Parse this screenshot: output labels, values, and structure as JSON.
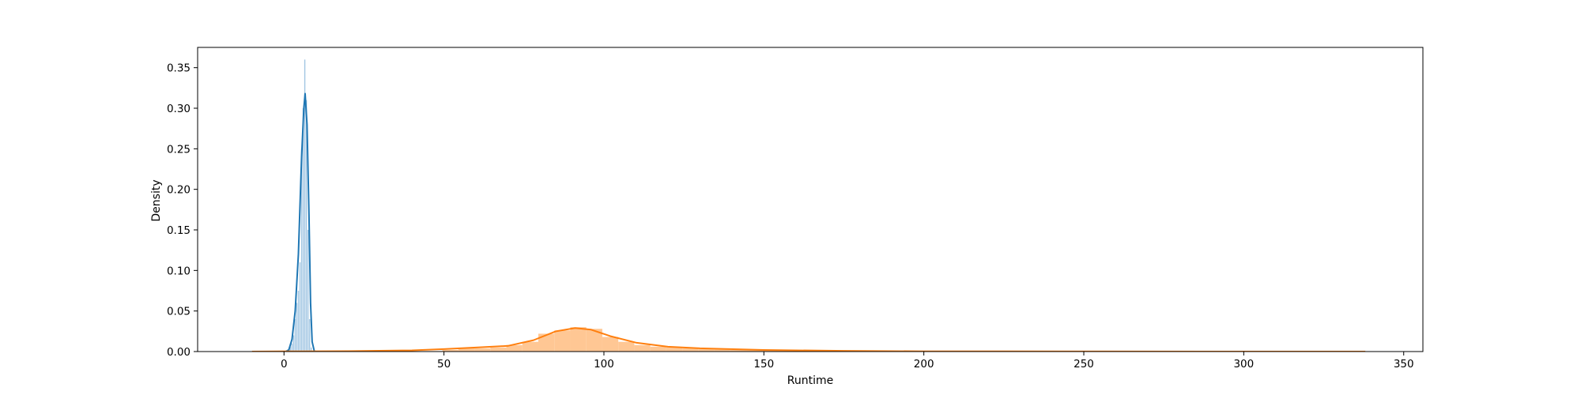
{
  "chart_data": {
    "type": "area",
    "xlabel": "Runtime",
    "ylabel": "Density",
    "xlim": [
      -27,
      356
    ],
    "ylim": [
      0,
      0.375
    ],
    "xticks": [
      0,
      50,
      100,
      150,
      200,
      250,
      300,
      350
    ],
    "xtick_labels": [
      "0",
      "50",
      "100",
      "150",
      "200",
      "250",
      "300",
      "350"
    ],
    "yticks": [
      0.0,
      0.05,
      0.1,
      0.15,
      0.2,
      0.25,
      0.3,
      0.35
    ],
    "ytick_labels": [
      "0.00",
      "0.05",
      "0.10",
      "0.15",
      "0.20",
      "0.25",
      "0.30",
      "0.35"
    ],
    "grid": false,
    "series": [
      {
        "color": "#1f77b4",
        "fill": "#9ec4e1",
        "hist_bin_width": 0.35,
        "hist": [
          [
            1.5,
            0.002
          ],
          [
            2.0,
            0.006
          ],
          [
            2.5,
            0.01
          ],
          [
            3.0,
            0.02
          ],
          [
            3.5,
            0.04
          ],
          [
            4.0,
            0.06
          ],
          [
            4.5,
            0.075
          ],
          [
            5.0,
            0.11
          ],
          [
            5.5,
            0.25
          ],
          [
            6.0,
            0.3
          ],
          [
            6.5,
            0.36
          ],
          [
            7.0,
            0.31
          ],
          [
            7.5,
            0.15
          ],
          [
            8.0,
            0.04
          ],
          [
            8.5,
            0.005
          ]
        ],
        "kde": [
          [
            0.5,
            0.0
          ],
          [
            1.5,
            0.002
          ],
          [
            2.5,
            0.015
          ],
          [
            3.5,
            0.05
          ],
          [
            4.5,
            0.12
          ],
          [
            5.5,
            0.24
          ],
          [
            6.2,
            0.3
          ],
          [
            6.6,
            0.318
          ],
          [
            7.2,
            0.28
          ],
          [
            7.8,
            0.17
          ],
          [
            8.3,
            0.06
          ],
          [
            8.8,
            0.012
          ],
          [
            9.5,
            0.0
          ]
        ]
      },
      {
        "color": "#ff7f0e",
        "fill": "#ffc48e",
        "hist_bin_width": 5,
        "hist": [
          [
            52,
            0.002
          ],
          [
            57,
            0.004
          ],
          [
            62,
            0.004
          ],
          [
            67,
            0.005
          ],
          [
            72,
            0.008
          ],
          [
            77,
            0.012
          ],
          [
            82,
            0.022
          ],
          [
            87,
            0.026
          ],
          [
            92,
            0.03
          ],
          [
            97,
            0.028
          ],
          [
            102,
            0.018
          ],
          [
            107,
            0.012
          ],
          [
            112,
            0.008
          ],
          [
            117,
            0.006
          ],
          [
            122,
            0.005
          ],
          [
            127,
            0.004
          ],
          [
            132,
            0.003
          ],
          [
            137,
            0.003
          ],
          [
            142,
            0.002
          ],
          [
            147,
            0.002
          ],
          [
            152,
            0.001
          ],
          [
            157,
            0.001
          ],
          [
            162,
            0.001
          ],
          [
            167,
            0.001
          ]
        ],
        "kde": [
          [
            -10,
            0.0
          ],
          [
            0,
            0.0002
          ],
          [
            20,
            0.0005
          ],
          [
            40,
            0.0015
          ],
          [
            50,
            0.003
          ],
          [
            60,
            0.005
          ],
          [
            70,
            0.007
          ],
          [
            78,
            0.014
          ],
          [
            85,
            0.025
          ],
          [
            91,
            0.029
          ],
          [
            96,
            0.027
          ],
          [
            102,
            0.019
          ],
          [
            110,
            0.011
          ],
          [
            120,
            0.006
          ],
          [
            130,
            0.004
          ],
          [
            150,
            0.002
          ],
          [
            175,
            0.0008
          ],
          [
            200,
            0.0003
          ],
          [
            250,
            0.0001
          ],
          [
            300,
            5e-05
          ],
          [
            338,
            0.0
          ]
        ]
      }
    ]
  }
}
